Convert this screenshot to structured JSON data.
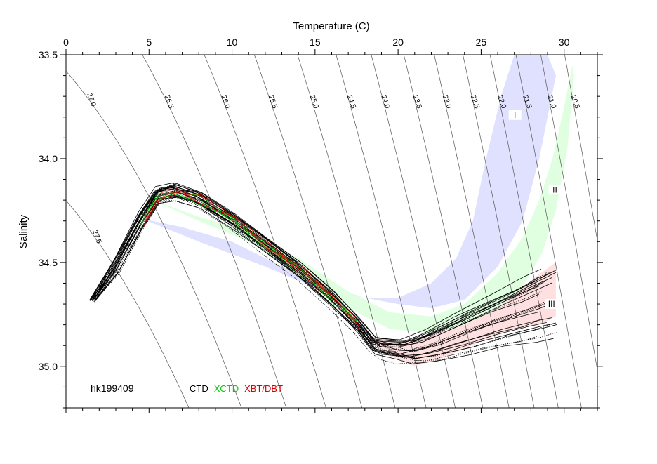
{
  "chart_data": {
    "type": "scatter",
    "title": "",
    "xlabel": "Temperature (C)",
    "ylabel": "Salinity",
    "xlim": [
      0,
      32
    ],
    "ylim": [
      33.5,
      35.2
    ],
    "y_inverted": true,
    "x_axis_position": "top",
    "x_ticks": [
      "0",
      "5",
      "10",
      "15",
      "20",
      "25",
      "30"
    ],
    "y_ticks": [
      "33.5",
      "34.0",
      "34.5",
      "35.0"
    ],
    "density_labels": [
      "27.5",
      "27.0",
      "26.5",
      "26.0",
      "25.5",
      "25.0",
      "24.5",
      "24.0",
      "23.5",
      "23.0",
      "22.5",
      "22.0",
      "21.5",
      "21.0",
      "20.5"
    ],
    "density_values": [
      27.5,
      27.0,
      26.5,
      26.0,
      25.5,
      25.0,
      24.5,
      24.0,
      23.5,
      23.0,
      22.5,
      22.0,
      21.5,
      21.0,
      20.5
    ],
    "station_id": "hk199409",
    "legend": [
      {
        "name": "CTD",
        "color": "#000000"
      },
      {
        "name": "XCTD",
        "color": "#00cc00"
      },
      {
        "name": "XBT/DBT",
        "color": "#dd0000"
      }
    ],
    "regions": [
      {
        "label": "I",
        "color": "#e0e0ff",
        "upper": [
          [
            4.6,
            34.29
          ],
          [
            8,
            34.4
          ],
          [
            12,
            34.52
          ],
          [
            15,
            34.62
          ],
          [
            18,
            34.67
          ],
          [
            20,
            34.67
          ],
          [
            22,
            34.6
          ],
          [
            23.5,
            34.48
          ],
          [
            24.5,
            34.3
          ],
          [
            25.3,
            34.0
          ],
          [
            26.2,
            33.7
          ],
          [
            27,
            33.5
          ],
          [
            29,
            33.5
          ],
          [
            29.5,
            33.6
          ]
        ],
        "lower": [
          [
            4.6,
            34.29
          ],
          [
            7,
            34.33
          ],
          [
            10,
            34.4
          ],
          [
            13.5,
            34.54
          ],
          [
            16,
            34.62
          ],
          [
            18,
            34.67
          ],
          [
            20,
            34.7
          ],
          [
            22,
            34.72
          ],
          [
            24,
            34.68
          ],
          [
            26,
            34.52
          ],
          [
            27.5,
            34.3
          ],
          [
            28.5,
            34.0
          ],
          [
            29.5,
            33.6
          ]
        ]
      },
      {
        "label": "II",
        "color": "#e0ffe0",
        "upper": [
          [
            5.2,
            34.2
          ],
          [
            8,
            34.28
          ],
          [
            11,
            34.35
          ],
          [
            14,
            34.48
          ],
          [
            17,
            34.64
          ],
          [
            19.5,
            34.74
          ],
          [
            22,
            34.76
          ],
          [
            24,
            34.7
          ],
          [
            26,
            34.55
          ],
          [
            27.5,
            34.38
          ],
          [
            28.5,
            34.2
          ],
          [
            29.3,
            34.0
          ],
          [
            30,
            33.75
          ],
          [
            30.5,
            33.55
          ]
        ],
        "lower": [
          [
            5.2,
            34.2
          ],
          [
            8,
            34.3
          ],
          [
            11,
            34.4
          ],
          [
            14,
            34.56
          ],
          [
            17,
            34.72
          ],
          [
            19.5,
            34.82
          ],
          [
            22,
            34.84
          ],
          [
            24,
            34.82
          ],
          [
            26,
            34.75
          ],
          [
            27.5,
            34.62
          ],
          [
            28.7,
            34.45
          ],
          [
            29.5,
            34.25
          ],
          [
            30.2,
            33.95
          ],
          [
            30.6,
            33.6
          ],
          [
            30.5,
            33.55
          ]
        ]
      },
      {
        "label": "III",
        "color": "#ffe0e0",
        "upper": [
          [
            18,
            34.86
          ],
          [
            20,
            34.88
          ],
          [
            22,
            34.85
          ],
          [
            24,
            34.8
          ],
          [
            26,
            34.72
          ],
          [
            27.5,
            34.62
          ],
          [
            28.6,
            34.55
          ],
          [
            29.5,
            34.5
          ]
        ],
        "lower": [
          [
            18,
            34.86
          ],
          [
            19.5,
            34.95
          ],
          [
            21,
            35.0
          ],
          [
            23,
            34.95
          ],
          [
            25,
            34.88
          ],
          [
            27,
            34.82
          ],
          [
            28.5,
            34.8
          ],
          [
            29.5,
            34.76
          ],
          [
            29.5,
            34.5
          ]
        ]
      }
    ],
    "series": [
      {
        "name": "CTD",
        "color": "#000000",
        "mean_profile": [
          [
            1.6,
            34.68
          ],
          [
            3,
            34.52
          ],
          [
            4.5,
            34.3
          ],
          [
            5.5,
            34.18
          ],
          [
            6.5,
            34.16
          ],
          [
            8,
            34.2
          ],
          [
            10,
            34.3
          ],
          [
            12,
            34.42
          ],
          [
            14,
            34.54
          ],
          [
            16,
            34.68
          ],
          [
            17.5,
            34.8
          ],
          [
            18.5,
            34.9
          ],
          [
            19.5,
            34.92
          ],
          [
            20.5,
            34.93
          ],
          [
            22,
            34.9
          ],
          [
            24,
            34.84
          ],
          [
            26,
            34.78
          ],
          [
            28,
            34.73
          ],
          [
            29,
            34.7
          ]
        ]
      }
    ]
  }
}
